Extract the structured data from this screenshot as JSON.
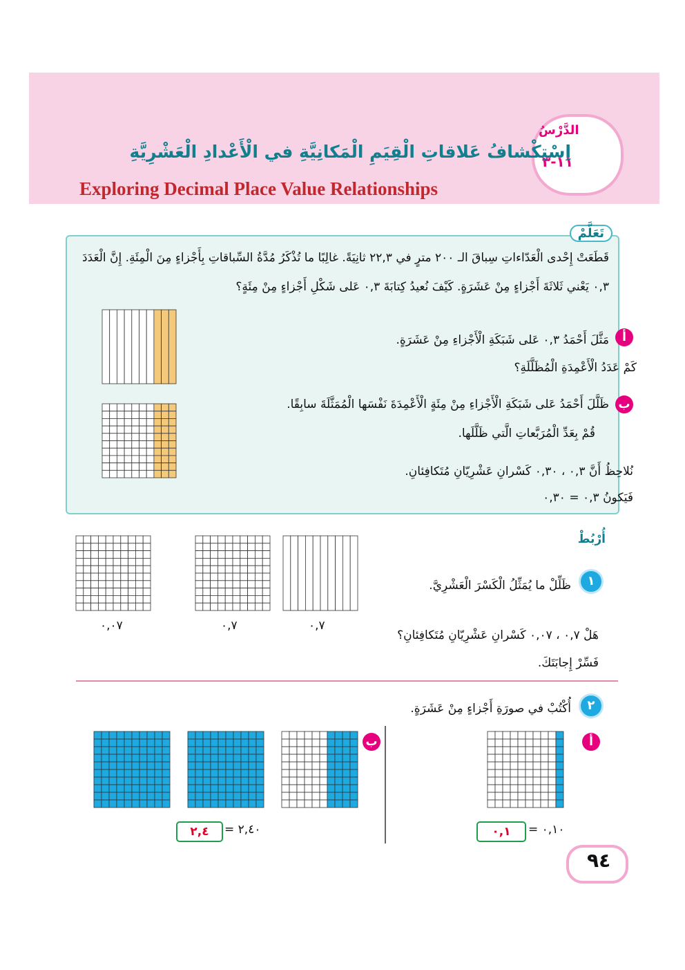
{
  "header": {
    "lesson_label": "الدَّرْسُ",
    "lesson_number": "١١-٣",
    "title_ar": "اِسْتِكْشافُ عَلاقاتِ الْقِيَمِ الْمَكانِيَّةِ في الْأَعْدادِ الْعَشْرِيَّةِ",
    "title_en": "Exploring Decimal Place Value Relationships"
  },
  "learn": {
    "label": "تَعَلَّمْ",
    "intro": "قَطَعَتْ إِحْدى الْعَدّاءاتِ سِباقَ الـ ٢٠٠ مترٍ في ٢٢,٣ ثانِيَةً. غالِبًا ما تُذْكَرُ مُدَّةُ السِّباقاتِ بِأَجْزاءٍ مِنَ الْمِئَةِ. إِنَّ الْعَدَدَ ٠,٣ يَعْني ثَلاثَةَ أَجْزاءٍ مِنْ عَشَرَةٍ. كَيْفَ نُعيدُ كِتابَةَ ٠,٣ عَلى شَكْلِ أَجْزاءٍ مِنْ مِئَةٍ؟",
    "steps": [
      {
        "letter": "أ",
        "lines": [
          "مَثَّلَ أَحْمَدُ ٠,٣ عَلى شَبَكَةِ الْأَجْزاءِ مِنْ عَشَرَةٍ.",
          "كَمْ عَدَدُ الْأَعْمِدَةِ الْمُظَلَّلَةِ؟"
        ]
      },
      {
        "letter": "ب",
        "lines": [
          "ظَلَّلَ أَحْمَدُ عَلى شَبَكَةِ الْأَجْزاءِ مِنْ مِئَةٍ الْأَعْمِدَةَ نَفْسَها الْمُمَثَّلَةَ سابِقًا.",
          "قُمْ بِعَدِّ الْمُرَبَّعاتِ الَّتي ظَلَّلَها."
        ]
      }
    ],
    "note": "نُلاحِظُ أَنَّ ٠,٣ ، ٠,٣٠ كَسْرانِ عَشْرِيّانِ مُتَكافِئانِ.",
    "conclusion": "فَيَكونُ ٠,٣ = ٠,٣٠"
  },
  "connect": {
    "label": "أُرْبُطْ",
    "q1": {
      "number": "١",
      "text": "ظَلِّلْ ما يُمَثِّلُ الْكَسْرَ الْعَشْرِيَّ.",
      "grid_labels": [
        "٠,٧",
        "٠,٧",
        "٠,٠٧"
      ],
      "question": "هَلْ ٠,٧ ، ٠,٠٧ كَسْرانِ عَشْرِيّانِ مُتَكافِئانِ؟",
      "explain": "فَسِّرْ إِجابَتَكَ."
    },
    "q2": {
      "number": "٢",
      "text": "أُكْتُبْ في صورَةِ أَجْزاءٍ مِنْ عَشَرَةٍ.",
      "parts": [
        {
          "letter": "أ",
          "expression": "٠,١٠ =",
          "answer": "٠,١"
        },
        {
          "letter": "ب",
          "expression": "٢,٤٠ =",
          "answer": "٢,٤"
        }
      ]
    }
  },
  "page_number": "٩٤"
}
